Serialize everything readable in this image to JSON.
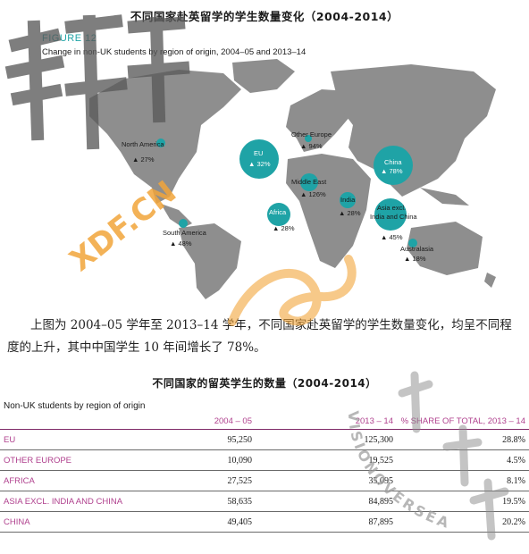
{
  "page_title": "不同国家赴英留学的学生数量变化（2004-2014）",
  "figure": {
    "label": "FIGURE 12",
    "caption": "Change in non-UK students by region of origin, 2004–05 and 2013–14",
    "regions": [
      {
        "name": "North America",
        "change": "▲ 27%"
      },
      {
        "name": "EU",
        "change": "▲ 32%"
      },
      {
        "name": "Other Europe",
        "change": "▲ 94%"
      },
      {
        "name": "China",
        "change": "▲ 78%"
      },
      {
        "name": "Middle East",
        "change": "▲ 126%"
      },
      {
        "name": "India",
        "change": "▲ 28%"
      },
      {
        "name": "Africa",
        "change": "▲ 28%"
      },
      {
        "name": "Asia excl.",
        "name2": "India and China",
        "change": "▲ 45%"
      },
      {
        "name": "South America",
        "change": "▲ 48%"
      },
      {
        "name": "Australasia",
        "change": "▲ 18%"
      }
    ]
  },
  "paragraph": "上图为 2004–05 学年至 2013–14 学年，不同国家赴英留学的学生数量变化，均呈不同程度的上升，其中中国学生 10 年间增长了 78%。",
  "table": {
    "title": "不同国家的留英学生的数量（2004-2014）",
    "caption": "Non-UK students by region of origin",
    "headers": [
      "",
      "2004 – 05",
      "2013 – 14",
      "% SHARE OF TOTAL, 2013 – 14"
    ],
    "rows": [
      [
        "EU",
        "95,250",
        "125,300",
        "28.8%"
      ],
      [
        "OTHER EUROPE",
        "10,090",
        "19,525",
        "4.5%"
      ],
      [
        "AFRICA",
        "27,525",
        "35,095",
        "8.1%"
      ],
      [
        "ASIA EXCL. INDIA AND CHINA",
        "58,635",
        "84,895",
        "19.5%"
      ],
      [
        "CHINA",
        "49,405",
        "87,895",
        "20.2%"
      ]
    ]
  },
  "watermarks": {
    "logo_text": "XDF.CN",
    "vision_text": "VISIONOVERSEA"
  },
  "colors": {
    "teal": "#1fa3a6",
    "land": "#8e8e8e",
    "accent_purple": "#b0418e",
    "watermark_gray": "#5a5a5a",
    "watermark_orange": "#f2a53a"
  }
}
